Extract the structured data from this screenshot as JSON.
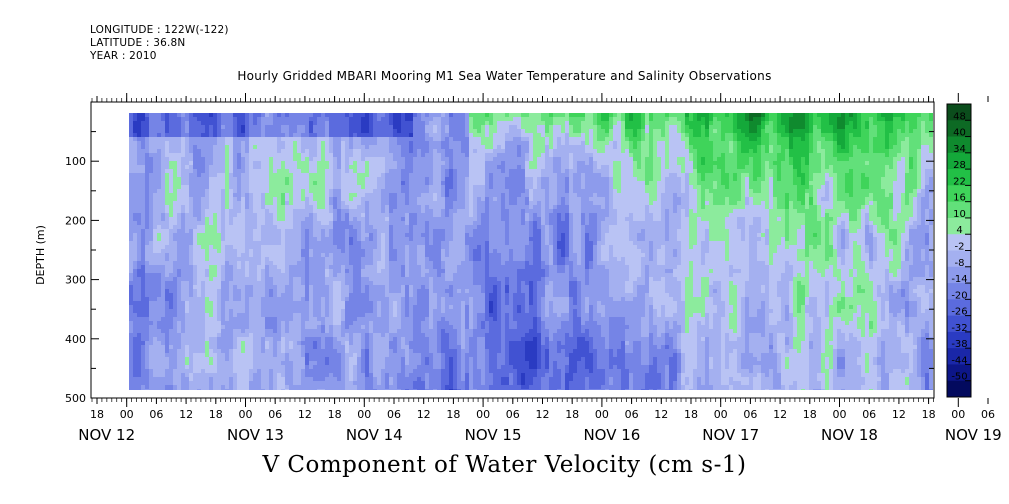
{
  "header": {
    "longitude": "LONGITUDE : 122W(-122)",
    "latitude": "LATITUDE : 36.8N",
    "year": "YEAR : 2010"
  },
  "chart_data": {
    "type": "heatmap",
    "title": "Hourly Gridded MBARI Mooring M1 Sea Water Temperature and Salinity Observations",
    "caption": "V Component of Water Velocity (cm s-1)",
    "xlabel": "",
    "ylabel": "DEPTH (m)",
    "y_reversed": true,
    "ylim": [
      500,
      0
    ],
    "y_ticks": [
      100,
      200,
      300,
      400,
      500
    ],
    "x_hour_ticks": [
      "18",
      "00",
      "06",
      "12",
      "18",
      "00",
      "06",
      "12",
      "18",
      "00",
      "06",
      "12",
      "18",
      "00",
      "06",
      "12",
      "18",
      "00",
      "06",
      "12",
      "18",
      "00",
      "06",
      "12",
      "18",
      "00",
      "06",
      "12",
      "18",
      "00",
      "06",
      "12",
      "18"
    ],
    "x_day_labels": [
      "NOV 12",
      "NOV 13",
      "NOV 14",
      "NOV 15",
      "NOV 16",
      "NOV 17",
      "NOV 18",
      "NOV 19"
    ],
    "colorbar_levels": [
      48,
      40,
      34,
      28,
      22,
      16,
      10,
      4,
      -2,
      -8,
      -14,
      -20,
      -26,
      -32,
      -38,
      -44,
      -50
    ],
    "colorbar_colors": [
      "#0b4d1c",
      "#0d6a24",
      "#0f8a2e",
      "#14a83a",
      "#22c046",
      "#3fd45a",
      "#62e07a",
      "#8ceb9d",
      "#b9c3f4",
      "#a4b0f0",
      "#8d9bec",
      "#7584e6",
      "#5b6bde",
      "#4152d2",
      "#2a3bc2",
      "#1a27a8",
      "#0d1688",
      "#030a5e"
    ],
    "depth_range": [
      20,
      490
    ],
    "regions_desc": {
      "positive_green": "surface layer and scattered vertical bands, strongest near NOV 17-18 at top",
      "negative_blue": "deep water, strongest near NOV 12-13 top and NOV 14-17 bottom"
    }
  }
}
